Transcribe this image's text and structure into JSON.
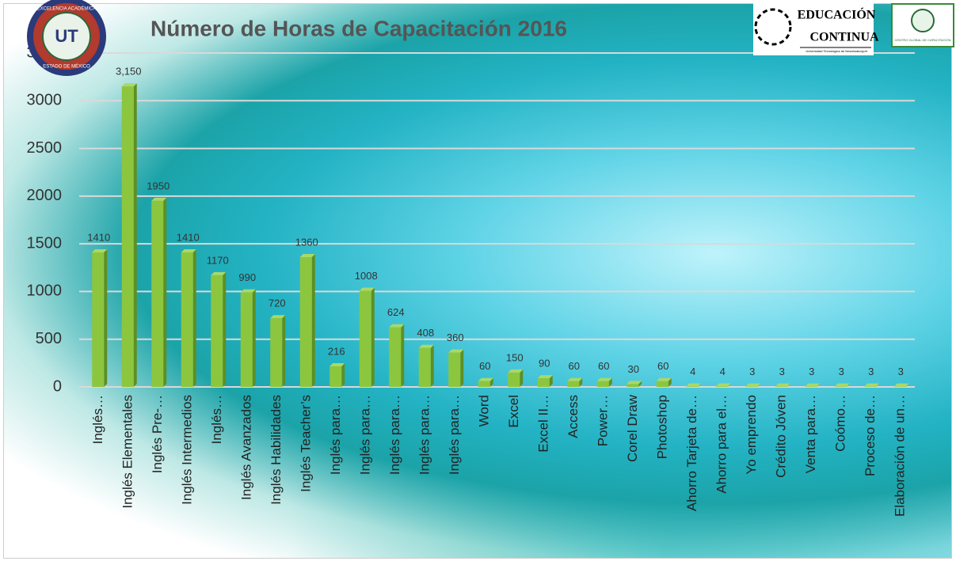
{
  "chart_data": {
    "type": "bar3d",
    "title": "Número de Horas de Capacitación 2016",
    "categories": [
      "Inglés…",
      "Inglés Elementales",
      "Inglés Pre-…",
      "Inglés Intermedios",
      "Inglés…",
      "Inglés Avanzados",
      "Inglés Habilidades",
      "Inglés Teacher’s",
      "Inglés para…",
      "Inglés para…",
      "Inglés para…",
      "Inglés para…",
      "Inglés para…",
      "Word",
      "Excel",
      "Excel II…",
      "Access",
      "Power…",
      "Corel Draw",
      "Photoshop",
      "Ahorro Tarjeta de…",
      "Ahorro para el…",
      "Yo emprendo",
      "Crédito Jóven",
      "Venta para…",
      "Coómo…",
      "Proceso de…",
      "Elaboración de un…"
    ],
    "values": [
      1410,
      3150,
      1950,
      1410,
      1170,
      990,
      720,
      1360,
      216,
      1008,
      624,
      408,
      360,
      60,
      150,
      90,
      60,
      60,
      30,
      60,
      4,
      4,
      3,
      3,
      3,
      3,
      3,
      3
    ],
    "value_labels": [
      "1410",
      "3,150",
      "1950",
      "1410",
      "1170",
      "990",
      "720",
      "1360",
      "216",
      "1008",
      "624",
      "408",
      "360",
      "60",
      "150",
      "90",
      "60",
      "60",
      "30",
      "60",
      "4",
      "4",
      "3",
      "3",
      "3",
      "3",
      "3",
      "3"
    ],
    "color": "#8cc63f",
    "ylim": [
      0,
      3500
    ],
    "yticks": [
      0,
      500,
      1000,
      1500,
      2000,
      2500,
      3000,
      3500
    ],
    "grid": true
  },
  "logos": {
    "left_top": "EXCELENCIA ACADÉMICA",
    "left_bottom": "ESTADO DE MÉXICO",
    "left_center": "UT",
    "right_line1": "EDUCACIÓN",
    "right_line2": "CONTINUA",
    "right_small": "Universidad Tecnológica de Nezahualcóyotl",
    "far_right": "CENTRO GLOBAL DE CAPACITACIÓN"
  }
}
